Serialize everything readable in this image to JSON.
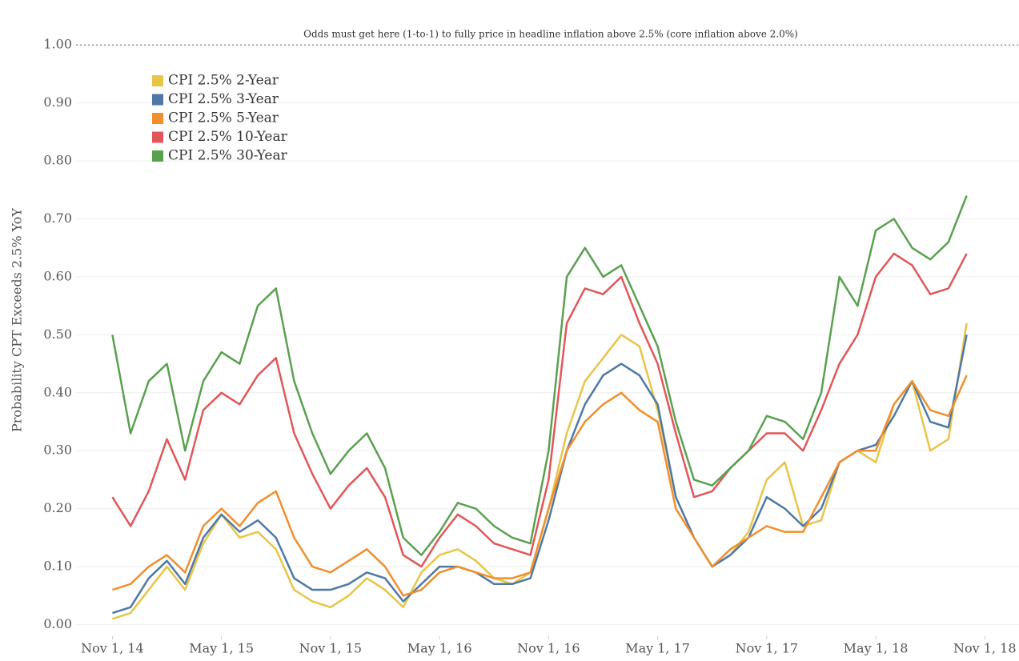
{
  "chart_data": {
    "type": "line",
    "y_label": "Probability CPT Exceeds 2.5% YoY",
    "reference_line": {
      "value": 1,
      "label": "Odds must get here (1-to-1) to fully price in headline inflation above 2.5% (core inflation above 2.0%)"
    },
    "x": [
      "2014-11",
      "2014-12",
      "2015-01",
      "2015-02",
      "2015-03",
      "2015-04",
      "2015-05",
      "2015-06",
      "2015-07",
      "2015-08",
      "2015-09",
      "2015-10",
      "2015-11",
      "2015-12",
      "2016-01",
      "2016-02",
      "2016-03",
      "2016-04",
      "2016-05",
      "2016-06",
      "2016-07",
      "2016-08",
      "2016-09",
      "2016-10",
      "2016-11",
      "2016-12",
      "2017-01",
      "2017-02",
      "2017-03",
      "2017-04",
      "2017-05",
      "2017-06",
      "2017-07",
      "2017-08",
      "2017-09",
      "2017-10",
      "2017-11",
      "2017-12",
      "2018-01",
      "2018-02",
      "2018-03",
      "2018-04",
      "2018-05",
      "2018-06",
      "2018-07",
      "2018-08",
      "2018-09",
      "2018-10"
    ],
    "xlim": [
      "2014-09",
      "2018-12"
    ],
    "xticks": [
      {
        "value": "2014-11",
        "label": "Nov 1, 14"
      },
      {
        "value": "2015-05",
        "label": "May 1, 15"
      },
      {
        "value": "2015-11",
        "label": "Nov 1, 15"
      },
      {
        "value": "2016-05",
        "label": "May 1, 16"
      },
      {
        "value": "2016-11",
        "label": "Nov 1, 16"
      },
      {
        "value": "2017-05",
        "label": "May 1, 17"
      },
      {
        "value": "2017-11",
        "label": "Nov 1, 17"
      },
      {
        "value": "2018-05",
        "label": "May 1, 18"
      },
      {
        "value": "2018-11",
        "label": "Nov 1, 18"
      }
    ],
    "ylim": [
      -0.02,
      1.05
    ],
    "yticks": [
      {
        "value": 0,
        "label": "0.00"
      },
      {
        "value": 0.1,
        "label": "0.10"
      },
      {
        "value": 0.2,
        "label": "0.20"
      },
      {
        "value": 0.3,
        "label": "0.30"
      },
      {
        "value": 0.4,
        "label": "0.40"
      },
      {
        "value": 0.5,
        "label": "0.50"
      },
      {
        "value": 0.6,
        "label": "0.60"
      },
      {
        "value": 0.7,
        "label": "0.70"
      },
      {
        "value": 0.8,
        "label": "0.80"
      },
      {
        "value": 0.9,
        "label": "0.90"
      },
      {
        "value": 1,
        "label": "1.00"
      }
    ],
    "grid": true,
    "legend": "top-left",
    "series": [
      {
        "name": "CPI 2.5% 2-Year",
        "color": "#e8c547",
        "values": [
          0.01,
          0.02,
          0.06,
          0.1,
          0.06,
          0.14,
          0.19,
          0.15,
          0.16,
          0.13,
          0.06,
          0.04,
          0.03,
          0.05,
          0.08,
          0.06,
          0.03,
          0.09,
          0.12,
          0.13,
          0.11,
          0.08,
          0.07,
          0.09,
          0.2,
          0.33,
          0.42,
          0.46,
          0.5,
          0.48,
          0.37,
          0.22,
          0.15,
          0.1,
          0.12,
          0.16,
          0.25,
          0.28,
          0.17,
          0.18,
          0.28,
          0.3,
          0.28,
          0.38,
          0.42,
          0.3,
          0.32,
          0.52
        ]
      },
      {
        "name": "CPI 2.5% 3-Year",
        "color": "#4e79a7",
        "values": [
          0.02,
          0.03,
          0.08,
          0.11,
          0.07,
          0.15,
          0.19,
          0.16,
          0.18,
          0.15,
          0.08,
          0.06,
          0.06,
          0.07,
          0.09,
          0.08,
          0.04,
          0.07,
          0.1,
          0.1,
          0.09,
          0.07,
          0.07,
          0.08,
          0.18,
          0.3,
          0.38,
          0.43,
          0.45,
          0.43,
          0.38,
          0.22,
          0.15,
          0.1,
          0.12,
          0.15,
          0.22,
          0.2,
          0.17,
          0.2,
          0.28,
          0.3,
          0.31,
          0.36,
          0.42,
          0.35,
          0.34,
          0.5
        ]
      },
      {
        "name": "CPI 2.5% 5-Year",
        "color": "#f28e2b",
        "values": [
          0.06,
          0.07,
          0.1,
          0.12,
          0.09,
          0.17,
          0.2,
          0.17,
          0.21,
          0.23,
          0.15,
          0.1,
          0.09,
          0.11,
          0.13,
          0.1,
          0.05,
          0.06,
          0.09,
          0.1,
          0.09,
          0.08,
          0.08,
          0.09,
          0.2,
          0.3,
          0.35,
          0.38,
          0.4,
          0.37,
          0.35,
          0.2,
          0.15,
          0.1,
          0.13,
          0.15,
          0.17,
          0.16,
          0.16,
          0.22,
          0.28,
          0.3,
          0.3,
          0.38,
          0.42,
          0.37,
          0.36,
          0.43
        ]
      },
      {
        "name": "CPI 2.5% 10-Year",
        "color": "#e15759",
        "values": [
          0.22,
          0.17,
          0.23,
          0.32,
          0.25,
          0.37,
          0.4,
          0.38,
          0.43,
          0.46,
          0.33,
          0.26,
          0.2,
          0.24,
          0.27,
          0.22,
          0.12,
          0.1,
          0.15,
          0.19,
          0.17,
          0.14,
          0.13,
          0.12,
          0.25,
          0.52,
          0.58,
          0.57,
          0.6,
          0.52,
          0.45,
          0.33,
          0.22,
          0.23,
          0.27,
          0.3,
          0.33,
          0.33,
          0.3,
          0.37,
          0.45,
          0.5,
          0.6,
          0.64,
          0.62,
          0.57,
          0.58,
          0.64
        ]
      },
      {
        "name": "CPI 2.5% 30-Year",
        "color": "#59a14f",
        "values": [
          0.5,
          0.33,
          0.42,
          0.45,
          0.3,
          0.42,
          0.47,
          0.45,
          0.55,
          0.58,
          0.42,
          0.33,
          0.26,
          0.3,
          0.33,
          0.27,
          0.15,
          0.12,
          0.16,
          0.21,
          0.2,
          0.17,
          0.15,
          0.14,
          0.3,
          0.6,
          0.65,
          0.6,
          0.62,
          0.55,
          0.48,
          0.35,
          0.25,
          0.24,
          0.27,
          0.3,
          0.36,
          0.35,
          0.32,
          0.4,
          0.6,
          0.55,
          0.68,
          0.7,
          0.65,
          0.63,
          0.66,
          0.74
        ]
      }
    ]
  }
}
